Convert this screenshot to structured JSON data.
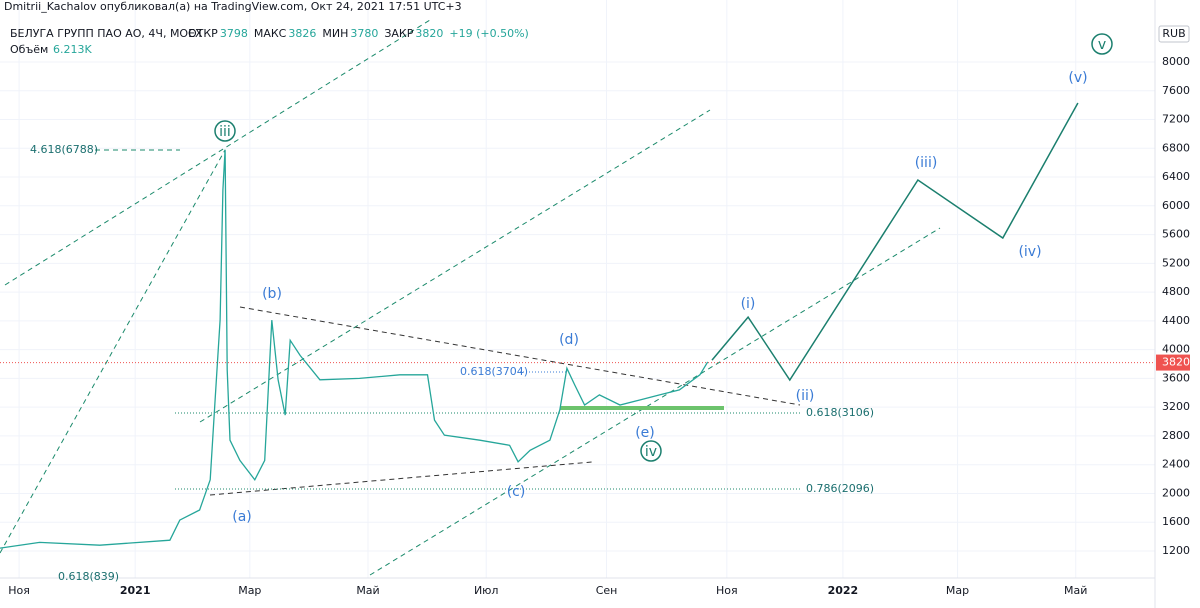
{
  "header": {
    "byline": "Dmitrii_Kachalov опубликовал(а) на TradingView.com, Окт 24, 2021 17:51 UTC+3",
    "symbol": "БЕЛУГА ГРУПП ПАО АО, 4Ч, MOEX",
    "ohlc": [
      {
        "label": "ОТКР",
        "value": "3798"
      },
      {
        "label": "МАКС",
        "value": "3826"
      },
      {
        "label": "МИН",
        "value": "3780"
      },
      {
        "label": "ЗАКР",
        "value": "3820"
      }
    ],
    "change": "+19 (+0.50%)",
    "volume_label": "Объём",
    "volume_value": "6.213K",
    "currency": "RUB"
  },
  "chart_data": {
    "type": "line",
    "last_price": 3820,
    "xlim": [
      2020.809,
      2022.441
    ],
    "ylim": [
      866,
      8862
    ],
    "grid": true,
    "xticks": [
      {
        "value": 2020.836,
        "label": "Ноя"
      },
      2021,
      {
        "value": 2021.162,
        "label": "Мар"
      },
      {
        "value": 2021.329,
        "label": "Май"
      },
      {
        "value": 2021.496,
        "label": "Июл"
      },
      {
        "value": 2021.666,
        "label": "Сен"
      },
      {
        "value": 2021.836,
        "label": "Ноя"
      },
      2022,
      {
        "value": 2022.162,
        "label": "Мар"
      },
      {
        "value": 2022.329,
        "label": "Май"
      }
    ],
    "yticks": [
      1200,
      1600,
      2000,
      2400,
      2800,
      3200,
      3600,
      4000,
      4400,
      4800,
      5200,
      5600,
      6000,
      6400,
      6800,
      7200,
      7600,
      8000
    ],
    "price": {
      "color": "#26a69a",
      "x": [
        2020.809,
        2020.865,
        2020.95,
        2021.049,
        2021.063,
        2021.091,
        2021.106,
        2021.113,
        2021.12,
        2021.124,
        2021.127,
        2021.13,
        2021.134,
        2021.148,
        2021.169,
        2021.183,
        2021.193,
        2021.202,
        2021.212,
        2021.219,
        2021.233,
        2021.261,
        2021.317,
        2021.374,
        2021.413,
        2021.423,
        2021.437,
        2021.487,
        2021.529,
        2021.541,
        2021.558,
        2021.586,
        2021.6,
        2021.61,
        2021.621,
        2021.635,
        2021.656,
        2021.685,
        2021.713,
        2021.741,
        2021.769,
        2021.798,
        2021.809
      ],
      "values": [
        1240,
        1320,
        1280,
        1350,
        1630,
        1770,
        2190,
        3300,
        4410,
        6220,
        6780,
        3720,
        2740,
        2460,
        2190,
        2460,
        4410,
        3580,
        3090,
        4130,
        3920,
        3580,
        3600,
        3650,
        3650,
        3020,
        2810,
        2740,
        2670,
        2440,
        2600,
        2740,
        3160,
        3740,
        3510,
        3230,
        3370,
        3230,
        3300,
        3370,
        3440,
        3650,
        3830
      ]
    },
    "projection": {
      "color": "#1b7f6e",
      "x": [
        2021.815,
        2021.866,
        2021.925,
        2022.106,
        2022.226,
        2022.332
      ],
      "values": [
        3855,
        4453,
        3577,
        6359,
        5552,
        7430
      ]
    },
    "annotations": [
      "4.618(6788)",
      "0.618(3704)",
      "0.618(3106)",
      "0.786(2096)",
      "0.618(839)"
    ],
    "waves": [
      "iii",
      "(b)",
      "(a)",
      "(d)",
      "(c)",
      "(e)",
      "iv",
      "(i)",
      "(ii)",
      "(iii)",
      "(iv)",
      "(v)",
      "v"
    ]
  }
}
